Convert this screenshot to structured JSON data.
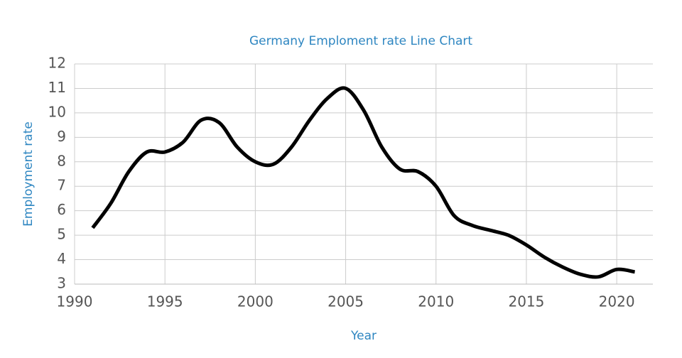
{
  "chart_data": {
    "type": "line",
    "title": "Germany Emploment rate Line Chart",
    "x_label": "Year",
    "y_label": "Employment rate",
    "x": [
      1991,
      1992,
      1993,
      1994,
      1995,
      1996,
      1997,
      1998,
      1999,
      2000,
      2001,
      2002,
      2003,
      2004,
      2005,
      2006,
      2007,
      2008,
      2009,
      2010,
      2011,
      2012,
      2013,
      2014,
      2015,
      2016,
      2017,
      2018,
      2019,
      2020,
      2021
    ],
    "series": [
      {
        "name": "Employment rate",
        "color": "#000000",
        "values": [
          5.3,
          6.3,
          7.6,
          8.4,
          8.4,
          8.8,
          9.7,
          9.6,
          8.6,
          8.0,
          7.9,
          8.6,
          9.7,
          10.6,
          11.0,
          10.1,
          8.6,
          7.7,
          7.6,
          7.0,
          5.8,
          5.4,
          5.2,
          5.0,
          4.6,
          4.1,
          3.7,
          3.4,
          3.3,
          3.6,
          3.5
        ]
      }
    ],
    "xlim": [
      1990,
      2022
    ],
    "xticks": [
      1990,
      1995,
      2000,
      2005,
      2010,
      2015,
      2020
    ],
    "ylim": [
      3,
      12
    ],
    "yticks": [
      3,
      4,
      5,
      6,
      7,
      8,
      9,
      10,
      11,
      12
    ],
    "grid": true
  }
}
